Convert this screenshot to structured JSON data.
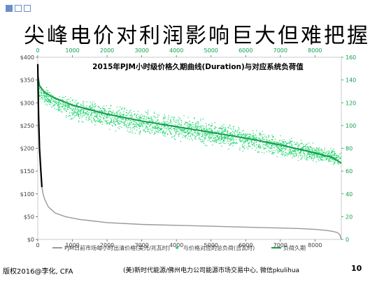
{
  "slide": {
    "title": "尖峰电价对利润影响巨大但难把握",
    "footer_left": "版权2016@李化, CFA",
    "footer_center": "(美)新时代能源/佛州电力公司能源市场交易中心, 微信pkulihua",
    "page_number": "10"
  },
  "colors": {
    "price": "#000000",
    "price_tail": "#999999",
    "load_scatter": "#19d26a",
    "load_line": "#169a48",
    "right_axis": "#12a050",
    "top_axis": "#12a050",
    "bullet": "#6b8fc4"
  },
  "chart_data": {
    "type": "line",
    "title": "2015年PJM小时级价格久期曲线(Duration)与对应系统负荷值",
    "xlim": [
      0,
      8760
    ],
    "ylim_left": [
      0,
      400
    ],
    "ylim_right": [
      0,
      160
    ],
    "x_ticks": [
      0,
      1000,
      2000,
      3000,
      4000,
      5000,
      6000,
      7000,
      8000
    ],
    "y_left_ticks": [
      "$0",
      "$50",
      "$100",
      "$150",
      "$200",
      "$250",
      "$300",
      "$350",
      "$400"
    ],
    "y_right_ticks": [
      "0",
      "20",
      "40",
      "60",
      "80",
      "100",
      "120",
      "140",
      "160"
    ],
    "legend_position": "bottom",
    "grid": false,
    "series": [
      {
        "name": "PJM日前市场每小时出清价格(美元/兆瓦时)",
        "axis": "left",
        "x": [
          0,
          10,
          25,
          50,
          80,
          120,
          160,
          200,
          300,
          500,
          800,
          1200,
          2000,
          3000,
          4000,
          5000,
          6000,
          7000,
          7500,
          8000,
          8300,
          8500,
          8650,
          8720,
          8760
        ],
        "y": [
          385,
          330,
          270,
          200,
          160,
          115,
          98,
          88,
          72,
          58,
          50,
          44,
          37,
          33,
          31,
          29,
          27,
          25,
          24,
          22,
          20,
          18,
          15,
          10,
          0
        ]
      },
      {
        "name": "与价格对应的总负荷(吉瓦时)",
        "axis": "right",
        "style": "scatter",
        "band_x": [
          0,
          500,
          1000,
          2000,
          3000,
          4000,
          5000,
          6000,
          7000,
          8000,
          8760
        ],
        "band_high": [
          140,
          131,
          127,
          122,
          116,
          112,
          106,
          101,
          94,
          86,
          79
        ],
        "band_low": [
          122,
          108,
          102,
          94,
          88,
          84,
          80,
          75,
          70,
          66,
          62
        ]
      },
      {
        "name": "负荷久期",
        "axis": "right",
        "x": [
          0,
          50,
          200,
          500,
          1000,
          2000,
          3000,
          4000,
          5000,
          6000,
          7000,
          8000,
          8500,
          8760
        ],
        "y": [
          144,
          135,
          129,
          124,
          118,
          110,
          104,
          99,
          94,
          89,
          83,
          76,
          72,
          67
        ]
      }
    ]
  }
}
